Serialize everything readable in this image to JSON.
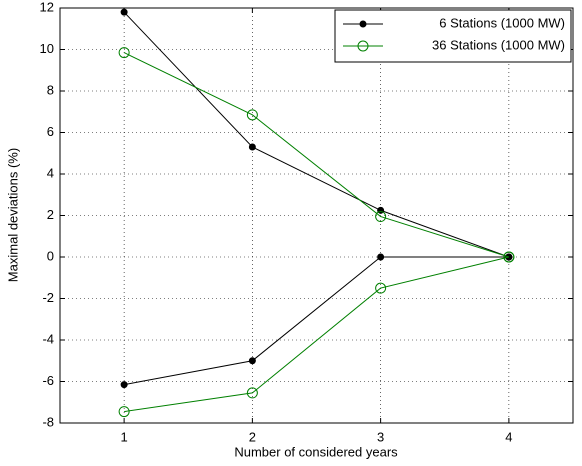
{
  "chart_data": {
    "type": "line",
    "x_label": "Number of considered years",
    "y_label": "Maximal deviations (%)",
    "x": [
      1,
      2,
      3,
      4
    ],
    "series": [
      {
        "name": "6 Stations (1000 MW)",
        "color": "#000000",
        "marker": "filled-circle",
        "values": [
          11.8,
          5.3,
          2.25,
          0
        ],
        "lower_values": [
          -6.15,
          -5.0,
          0,
          0
        ]
      },
      {
        "name": "36 Stations (1000 MW)",
        "color": "#008000",
        "marker": "open-circle",
        "values": [
          9.85,
          6.85,
          1.95,
          0
        ],
        "lower_values": [
          -7.45,
          -6.55,
          -1.5,
          0
        ]
      }
    ],
    "xlim": [
      0.5,
      4.5
    ],
    "xticks": [
      1,
      2,
      3,
      4
    ],
    "ylim": [
      -8,
      12
    ],
    "yticks": [
      -8,
      -6,
      -4,
      -2,
      0,
      2,
      4,
      6,
      8,
      10,
      12
    ],
    "grid": true,
    "legend_position": "upper-right"
  }
}
